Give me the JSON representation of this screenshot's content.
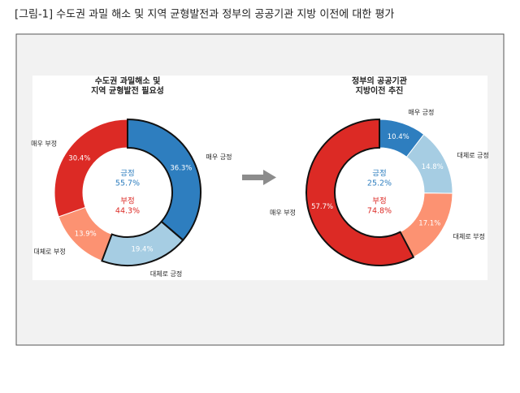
{
  "caption": "[그림-1] 수도권 과밀 해소 및 지역 균형발전과 정부의 공공기관 지방 이전에 대한 평가",
  "chart_data": [
    {
      "type": "donut",
      "title": [
        "수도권 과밀해소 및",
        "지역 균형발전 필요성"
      ],
      "categories": [
        "매우 긍정",
        "대체로 긍정",
        "대체로 부정",
        "매우 부정"
      ],
      "values": [
        36.3,
        19.4,
        13.9,
        30.4
      ],
      "value_labels": [
        "36.3%",
        "19.4%",
        "13.9%",
        "30.4%"
      ],
      "colors": [
        "#2e7ebf",
        "#a6cde3",
        "#fc9272",
        "#dc2a25"
      ],
      "outlined": [
        true,
        true,
        false,
        false
      ],
      "center": [
        {
          "label": "긍정",
          "value": 55.7,
          "value_label": "55.7%",
          "color": "#2e7ebf"
        },
        {
          "label": "부정",
          "value": 44.3,
          "value_label": "44.3%",
          "color": "#dc2a25"
        }
      ]
    },
    {
      "type": "donut",
      "title": [
        "정부의 공공기관",
        "지방이전 추진"
      ],
      "categories": [
        "매우 긍정",
        "대체로 긍정",
        "대체로 부정",
        "매우 부정"
      ],
      "values": [
        10.4,
        14.8,
        17.1,
        57.7
      ],
      "value_labels": [
        "10.4%",
        "14.8%",
        "17.1%",
        "57.7%"
      ],
      "colors": [
        "#2e7ebf",
        "#a6cde3",
        "#fc9272",
        "#dc2a25"
      ],
      "outlined": [
        false,
        false,
        false,
        true
      ],
      "center": [
        {
          "label": "긍정",
          "value": 25.2,
          "value_label": "25.2%",
          "color": "#2e7ebf"
        },
        {
          "label": "부정",
          "value": 74.8,
          "value_label": "74.8%",
          "color": "#dc2a25"
        }
      ]
    }
  ]
}
